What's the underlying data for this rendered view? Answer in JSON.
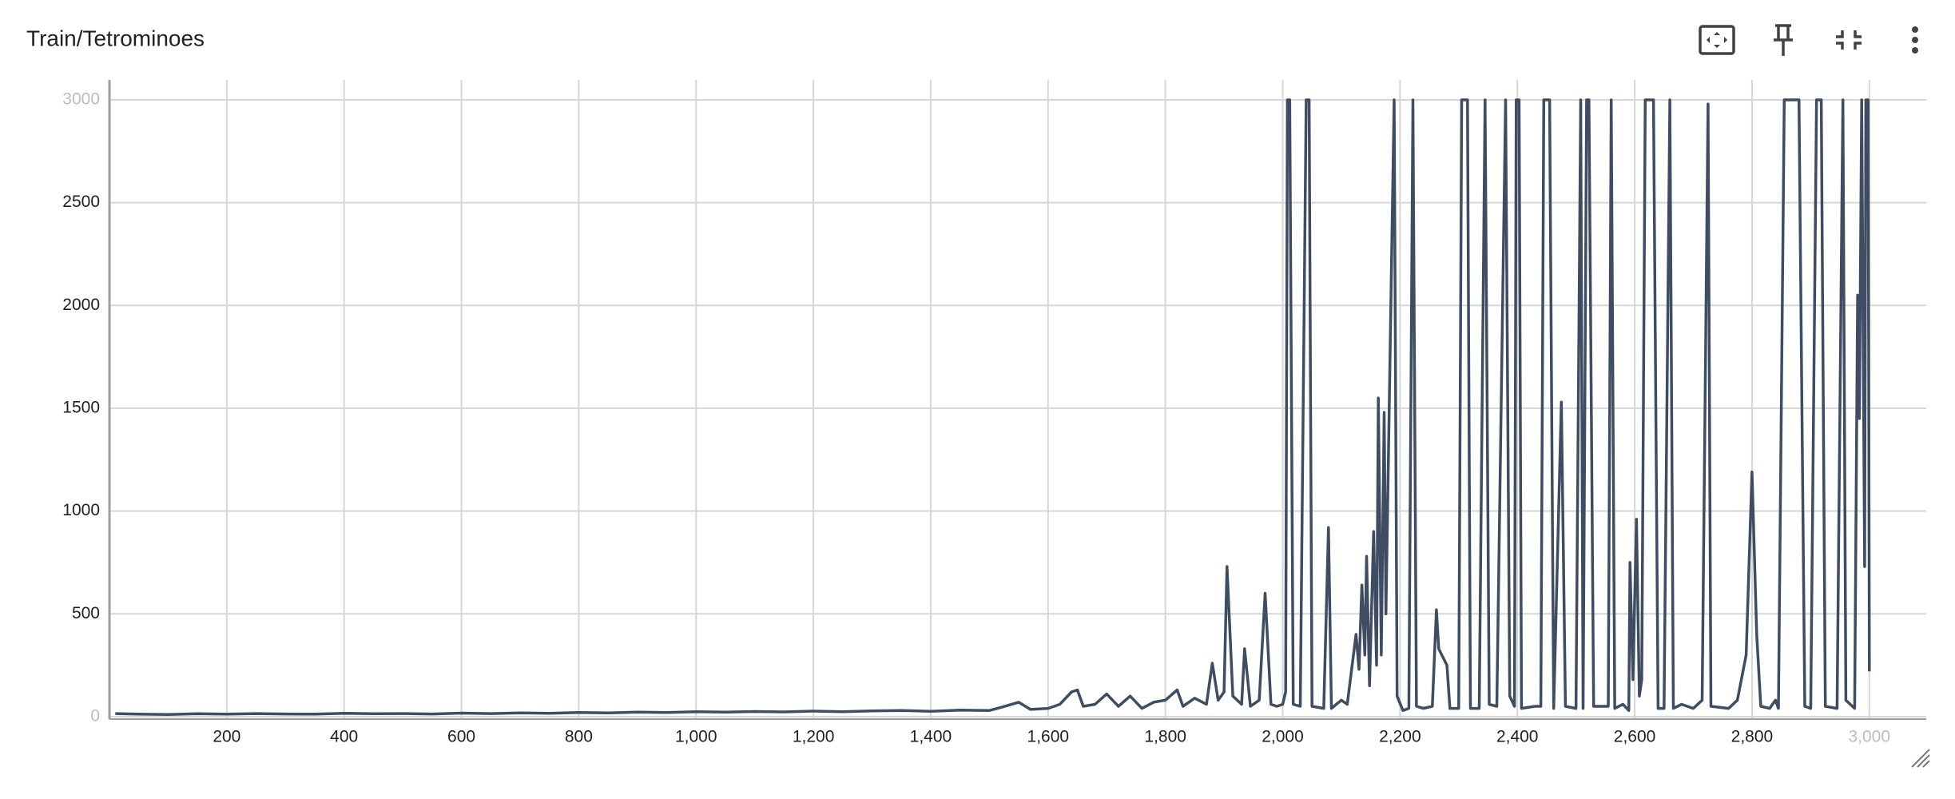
{
  "chart_data": {
    "type": "line",
    "title": "Train/Tetrominoes",
    "color": "#3f4d63",
    "grid": true,
    "xlim": [
      0,
      3097
    ],
    "ylim": [
      -12,
      3097
    ],
    "xticks": [
      200,
      400,
      600,
      800,
      {
        "value": 1000,
        "label": "1,000"
      },
      {
        "value": 1200,
        "label": "1,200"
      },
      {
        "value": 1400,
        "label": "1,400"
      },
      {
        "value": 1600,
        "label": "1,600"
      },
      {
        "value": 1800,
        "label": "1,800"
      },
      {
        "value": 2000,
        "label": "2,000"
      },
      {
        "value": 2200,
        "label": "2,200"
      },
      {
        "value": 2400,
        "label": "2,400"
      },
      {
        "value": 2600,
        "label": "2,600"
      },
      {
        "value": 2800,
        "label": "2,800"
      },
      {
        "value": 3000,
        "label": "3,000"
      }
    ],
    "yticks": [
      0,
      500,
      1000,
      1500,
      2000,
      2500,
      3000
    ],
    "x": [
      10,
      50,
      100,
      150,
      200,
      250,
      300,
      350,
      400,
      450,
      500,
      550,
      600,
      650,
      700,
      750,
      800,
      850,
      900,
      950,
      1000,
      1050,
      1100,
      1150,
      1200,
      1250,
      1300,
      1350,
      1400,
      1450,
      1500,
      1520,
      1550,
      1570,
      1600,
      1620,
      1640,
      1650,
      1660,
      1680,
      1700,
      1720,
      1740,
      1760,
      1780,
      1800,
      1820,
      1830,
      1850,
      1870,
      1880,
      1890,
      1900,
      1905,
      1915,
      1930,
      1935,
      1945,
      1960,
      1970,
      1980,
      1990,
      2000,
      2005,
      2008,
      2012,
      2018,
      2030,
      2040,
      2045,
      2050,
      2070,
      2078,
      2083,
      2100,
      2110,
      2125,
      2130,
      2135,
      2140,
      2143,
      2148,
      2155,
      2160,
      2163,
      2168,
      2173,
      2176,
      2190,
      2195,
      2205,
      2215,
      2222,
      2228,
      2240,
      2255,
      2262,
      2266,
      2280,
      2285,
      2300,
      2305,
      2315,
      2320,
      2335,
      2345,
      2352,
      2365,
      2380,
      2387,
      2395,
      2398,
      2403,
      2407,
      2430,
      2440,
      2445,
      2455,
      2462,
      2475,
      2482,
      2500,
      2508,
      2512,
      2518,
      2522,
      2530,
      2555,
      2560,
      2566,
      2580,
      2590,
      2592,
      2597,
      2603,
      2608,
      2612,
      2618,
      2632,
      2640,
      2650,
      2660,
      2666,
      2680,
      2700,
      2715,
      2725,
      2730,
      2760,
      2775,
      2790,
      2800,
      2808,
      2815,
      2830,
      2840,
      2845,
      2855,
      2880,
      2890,
      2900,
      2910,
      2918,
      2925,
      2945,
      2955,
      2960,
      2975,
      2980,
      2983,
      2987,
      2992,
      2994,
      2998,
      3000
    ],
    "values": [
      15,
      12,
      10,
      14,
      12,
      15,
      13,
      12,
      16,
      14,
      15,
      13,
      17,
      15,
      18,
      16,
      20,
      18,
      22,
      20,
      24,
      22,
      25,
      23,
      27,
      24,
      28,
      30,
      26,
      32,
      30,
      45,
      70,
      35,
      40,
      60,
      120,
      130,
      50,
      60,
      110,
      50,
      100,
      40,
      70,
      80,
      130,
      50,
      90,
      60,
      260,
      80,
      120,
      730,
      100,
      60,
      330,
      50,
      80,
      600,
      60,
      50,
      60,
      120,
      3000,
      3000,
      60,
      50,
      3000,
      3000,
      50,
      40,
      920,
      40,
      80,
      60,
      400,
      230,
      640,
      300,
      780,
      150,
      900,
      250,
      1550,
      300,
      1480,
      500,
      3000,
      100,
      30,
      40,
      3000,
      50,
      40,
      50,
      520,
      330,
      250,
      40,
      40,
      3000,
      3000,
      40,
      40,
      3000,
      60,
      50,
      3000,
      100,
      50,
      3000,
      3000,
      40,
      50,
      50,
      3000,
      3000,
      40,
      1530,
      50,
      40,
      3000,
      40,
      3000,
      3000,
      50,
      50,
      3000,
      40,
      60,
      30,
      750,
      180,
      960,
      100,
      180,
      3000,
      3000,
      40,
      40,
      3000,
      40,
      60,
      40,
      80,
      2980,
      50,
      40,
      80,
      300,
      1190,
      400,
      50,
      40,
      80,
      40,
      3000,
      3000,
      50,
      40,
      3000,
      3000,
      50,
      40,
      3000,
      80,
      40,
      2050,
      1450,
      3000,
      730,
      3000,
      3000,
      220
    ]
  }
}
